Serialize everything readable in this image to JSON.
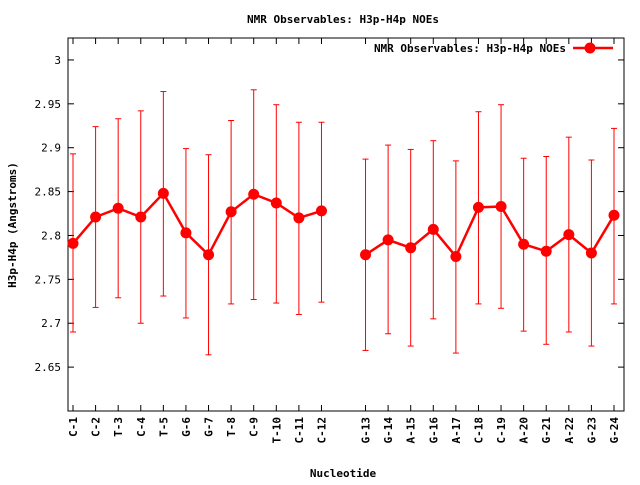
{
  "chart_data": {
    "type": "line",
    "title": "NMR Observables: H3p-H4p NOEs",
    "xlabel": "Nucleotide",
    "ylabel": "H3p-H4p (Angstroms)",
    "ylim": [
      2.6,
      3.025
    ],
    "yticks": [
      "2.65",
      "2.7",
      "2.75",
      "2.8",
      "2.85",
      "2.9",
      "2.95",
      "3"
    ],
    "categories": [
      "C-1",
      "C-2",
      "T-3",
      "C-4",
      "T-5",
      "G-6",
      "G-7",
      "T-8",
      "C-9",
      "T-10",
      "C-11",
      "C-12",
      "G-13",
      "G-14",
      "A-15",
      "G-16",
      "A-17",
      "C-18",
      "C-19",
      "A-20",
      "G-21",
      "A-22",
      "G-23",
      "G-24"
    ],
    "segments": [
      [
        0,
        11
      ],
      [
        12,
        23
      ]
    ],
    "series": [
      {
        "name": "NMR Observables: H3p-H4p NOEs",
        "color": "#ff0000",
        "values": [
          2.791,
          2.821,
          2.831,
          2.821,
          2.848,
          2.803,
          2.778,
          2.827,
          2.847,
          2.837,
          2.82,
          2.828,
          2.778,
          2.795,
          2.786,
          2.807,
          2.776,
          2.832,
          2.833,
          2.79,
          2.782,
          2.801,
          2.78,
          2.823
        ],
        "err_low": [
          2.69,
          2.718,
          2.729,
          2.7,
          2.731,
          2.706,
          2.664,
          2.722,
          2.727,
          2.723,
          2.71,
          2.724,
          2.669,
          2.688,
          2.674,
          2.705,
          2.666,
          2.722,
          2.717,
          2.691,
          2.676,
          2.69,
          2.674,
          2.722
        ],
        "err_high": [
          2.893,
          2.924,
          2.933,
          2.942,
          2.964,
          2.899,
          2.892,
          2.931,
          2.966,
          2.949,
          2.929,
          2.929,
          2.887,
          2.903,
          2.898,
          2.908,
          2.885,
          2.941,
          2.949,
          2.888,
          2.89,
          2.912,
          2.886,
          2.922
        ]
      }
    ],
    "legend_position": "top-right",
    "grid": false
  }
}
